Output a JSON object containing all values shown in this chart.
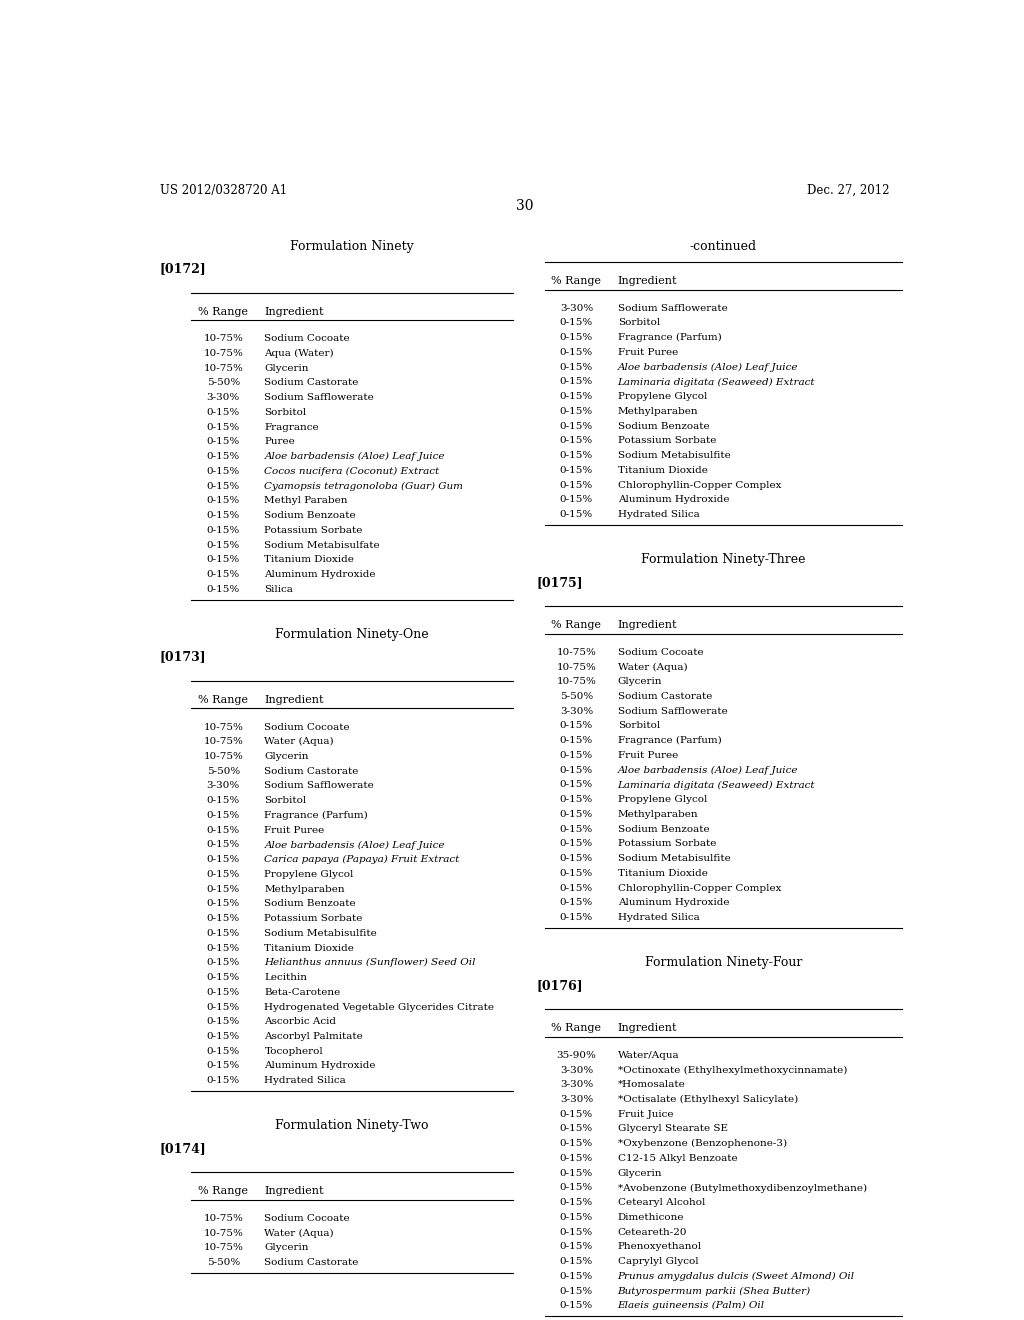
{
  "header_left": "US 2012/0328720 A1",
  "header_right": "Dec. 27, 2012",
  "page_num": "30",
  "bg_color": "#ffffff",
  "text_color": "#000000",
  "sections": [
    {
      "title": "Formulation Ninety",
      "ref": "[0172]",
      "rows": [
        [
          "10-75%",
          "Sodium Cocoate",
          false
        ],
        [
          "10-75%",
          "Aqua (Water)",
          false
        ],
        [
          "10-75%",
          "Glycerin",
          false
        ],
        [
          "5-50%",
          "Sodium Castorate",
          false
        ],
        [
          "3-30%",
          "Sodium Safflowerate",
          false
        ],
        [
          "0-15%",
          "Sorbitol",
          false
        ],
        [
          "0-15%",
          "Fragrance",
          false
        ],
        [
          "0-15%",
          "Puree",
          false
        ],
        [
          "0-15%",
          "Aloe barbadensis (Aloe) Leaf Juice",
          true
        ],
        [
          "0-15%",
          "Cocos nucifera (Coconut) Extract",
          true
        ],
        [
          "0-15%",
          "Cyamopsis tetragonoloba (Guar) Gum",
          true
        ],
        [
          "0-15%",
          "Methyl Paraben",
          false
        ],
        [
          "0-15%",
          "Sodium Benzoate",
          false
        ],
        [
          "0-15%",
          "Potassium Sorbate",
          false
        ],
        [
          "0-15%",
          "Sodium Metabisulfate",
          false
        ],
        [
          "0-15%",
          "Titanium Dioxide",
          false
        ],
        [
          "0-15%",
          "Aluminum Hydroxide",
          false
        ],
        [
          "0-15%",
          "Silica",
          false
        ]
      ]
    },
    {
      "title": "Formulation Ninety-One",
      "ref": "[0173]",
      "rows": [
        [
          "10-75%",
          "Sodium Cocoate",
          false
        ],
        [
          "10-75%",
          "Water (Aqua)",
          false
        ],
        [
          "10-75%",
          "Glycerin",
          false
        ],
        [
          "5-50%",
          "Sodium Castorate",
          false
        ],
        [
          "3-30%",
          "Sodium Safflowerate",
          false
        ],
        [
          "0-15%",
          "Sorbitol",
          false
        ],
        [
          "0-15%",
          "Fragrance (Parfum)",
          false
        ],
        [
          "0-15%",
          "Fruit Puree",
          false
        ],
        [
          "0-15%",
          "Aloe barbadensis (Aloe) Leaf Juice",
          true
        ],
        [
          "0-15%",
          "Carica papaya (Papaya) Fruit Extract",
          true
        ],
        [
          "0-15%",
          "Propylene Glycol",
          false
        ],
        [
          "0-15%",
          "Methylparaben",
          false
        ],
        [
          "0-15%",
          "Sodium Benzoate",
          false
        ],
        [
          "0-15%",
          "Potassium Sorbate",
          false
        ],
        [
          "0-15%",
          "Sodium Metabisulfite",
          false
        ],
        [
          "0-15%",
          "Titanium Dioxide",
          false
        ],
        [
          "0-15%",
          "Helianthus annuus (Sunflower) Seed Oil",
          true
        ],
        [
          "0-15%",
          "Lecithin",
          false
        ],
        [
          "0-15%",
          "Beta-Carotene",
          false
        ],
        [
          "0-15%",
          "Hydrogenated Vegetable Glycerides Citrate",
          false
        ],
        [
          "0-15%",
          "Ascorbic Acid",
          false
        ],
        [
          "0-15%",
          "Ascorbyl Palmitate",
          false
        ],
        [
          "0-15%",
          "Tocopherol",
          false
        ],
        [
          "0-15%",
          "Aluminum Hydroxide",
          false
        ],
        [
          "0-15%",
          "Hydrated Silica",
          false
        ]
      ]
    },
    {
      "title": "Formulation Ninety-Two",
      "ref": "[0174]",
      "rows": [
        [
          "10-75%",
          "Sodium Cocoate",
          false
        ],
        [
          "10-75%",
          "Water (Aqua)",
          false
        ],
        [
          "10-75%",
          "Glycerin",
          false
        ],
        [
          "5-50%",
          "Sodium Castorate",
          false
        ]
      ]
    }
  ],
  "right_sections": [
    {
      "title": "-continued",
      "ref": null,
      "rows": [
        [
          "3-30%",
          "Sodium Safflowerate",
          false
        ],
        [
          "0-15%",
          "Sorbitol",
          false
        ],
        [
          "0-15%",
          "Fragrance (Parfum)",
          false
        ],
        [
          "0-15%",
          "Fruit Puree",
          false
        ],
        [
          "0-15%",
          "Aloe barbadensis (Aloe) Leaf Juice",
          true
        ],
        [
          "0-15%",
          "Laminaria digitata (Seaweed) Extract",
          true
        ],
        [
          "0-15%",
          "Propylene Glycol",
          false
        ],
        [
          "0-15%",
          "Methylparaben",
          false
        ],
        [
          "0-15%",
          "Sodium Benzoate",
          false
        ],
        [
          "0-15%",
          "Potassium Sorbate",
          false
        ],
        [
          "0-15%",
          "Sodium Metabisulfite",
          false
        ],
        [
          "0-15%",
          "Titanium Dioxide",
          false
        ],
        [
          "0-15%",
          "Chlorophyllin-Copper Complex",
          false
        ],
        [
          "0-15%",
          "Aluminum Hydroxide",
          false
        ],
        [
          "0-15%",
          "Hydrated Silica",
          false
        ]
      ]
    },
    {
      "title": "Formulation Ninety-Three",
      "ref": "[0175]",
      "rows": [
        [
          "10-75%",
          "Sodium Cocoate",
          false
        ],
        [
          "10-75%",
          "Water (Aqua)",
          false
        ],
        [
          "10-75%",
          "Glycerin",
          false
        ],
        [
          "5-50%",
          "Sodium Castorate",
          false
        ],
        [
          "3-30%",
          "Sodium Safflowerate",
          false
        ],
        [
          "0-15%",
          "Sorbitol",
          false
        ],
        [
          "0-15%",
          "Fragrance (Parfum)",
          false
        ],
        [
          "0-15%",
          "Fruit Puree",
          false
        ],
        [
          "0-15%",
          "Aloe barbadensis (Aloe) Leaf Juice",
          true
        ],
        [
          "0-15%",
          "Laminaria digitata (Seaweed) Extract",
          true
        ],
        [
          "0-15%",
          "Propylene Glycol",
          false
        ],
        [
          "0-15%",
          "Methylparaben",
          false
        ],
        [
          "0-15%",
          "Sodium Benzoate",
          false
        ],
        [
          "0-15%",
          "Potassium Sorbate",
          false
        ],
        [
          "0-15%",
          "Sodium Metabisulfite",
          false
        ],
        [
          "0-15%",
          "Titanium Dioxide",
          false
        ],
        [
          "0-15%",
          "Chlorophyllin-Copper Complex",
          false
        ],
        [
          "0-15%",
          "Aluminum Hydroxide",
          false
        ],
        [
          "0-15%",
          "Hydrated Silica",
          false
        ]
      ]
    },
    {
      "title": "Formulation Ninety-Four",
      "ref": "[0176]",
      "rows": [
        [
          "35-90%",
          "Water/Aqua",
          false
        ],
        [
          "3-30%",
          "*Octinoxate (Ethylhexylmethoxycinnamate)",
          false
        ],
        [
          "3-30%",
          "*Homosalate",
          false
        ],
        [
          "3-30%",
          "*Octisalate (Ethylhexyl Salicylate)",
          false
        ],
        [
          "0-15%",
          "Fruit Juice",
          false
        ],
        [
          "0-15%",
          "Glyceryl Stearate SE",
          false
        ],
        [
          "0-15%",
          "*Oxybenzone (Benzophenone-3)",
          false
        ],
        [
          "0-15%",
          "C12-15 Alkyl Benzoate",
          false
        ],
        [
          "0-15%",
          "Glycerin",
          false
        ],
        [
          "0-15%",
          "*Avobenzone (Butylmethoxydibenzoylmethane)",
          false
        ],
        [
          "0-15%",
          "Cetearyl Alcohol",
          false
        ],
        [
          "0-15%",
          "Dimethicone",
          false
        ],
        [
          "0-15%",
          "Ceteareth-20",
          false
        ],
        [
          "0-15%",
          "Phenoxyethanol",
          false
        ],
        [
          "0-15%",
          "Caprylyl Glycol",
          false
        ],
        [
          "0-15%",
          "Prunus amygdalus dulcis (Sweet Almond) Oil",
          true
        ],
        [
          "0-15%",
          "Butyrospermum parkii (Shea Butter)",
          true
        ],
        [
          "0-15%",
          "Elaeis guineensis (Palm) Oil",
          true
        ]
      ]
    }
  ]
}
